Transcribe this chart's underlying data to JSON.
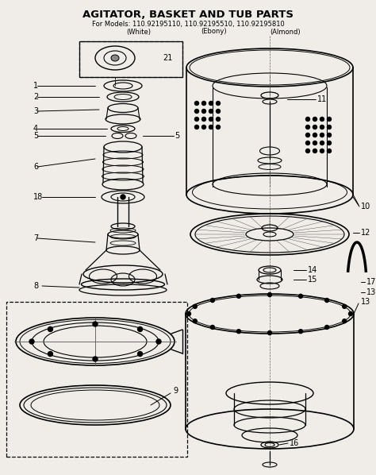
{
  "title": "AGITATOR, BASKET AND TUB PARTS",
  "subtitle": "For Models: 110.92195110, 110.92195510, 110.92195810",
  "subtitle2_white": "(White)",
  "subtitle2_ebony": "(Ebony)",
  "subtitle2_almond": "(Almond)",
  "bg_color": "#f0ede8",
  "fig_w": 4.74,
  "fig_h": 5.98,
  "dpi": 100
}
